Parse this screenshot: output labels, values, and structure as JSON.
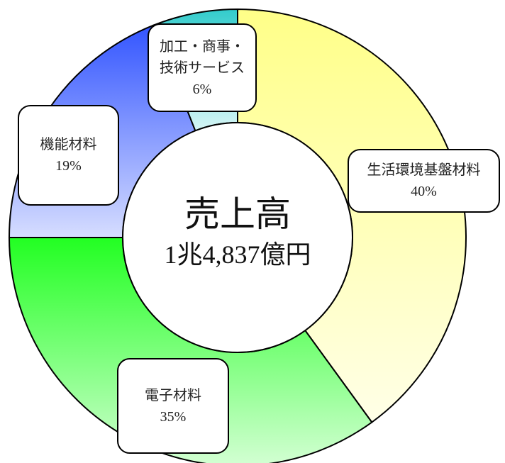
{
  "chart_data": {
    "type": "donut",
    "center_title": "売上高",
    "center_subtitle": "1兆4,837億円",
    "categories": [
      "生活環境基盤材料",
      "電子材料",
      "機能材料",
      "加工・商事・技術サービス"
    ],
    "values": [
      40,
      35,
      19,
      6
    ],
    "value_labels": [
      "40%",
      "35%",
      "19%",
      "6%"
    ],
    "colors": [
      "#ffff88",
      "#22ff22",
      "#3355ff",
      "#33cccc"
    ]
  }
}
